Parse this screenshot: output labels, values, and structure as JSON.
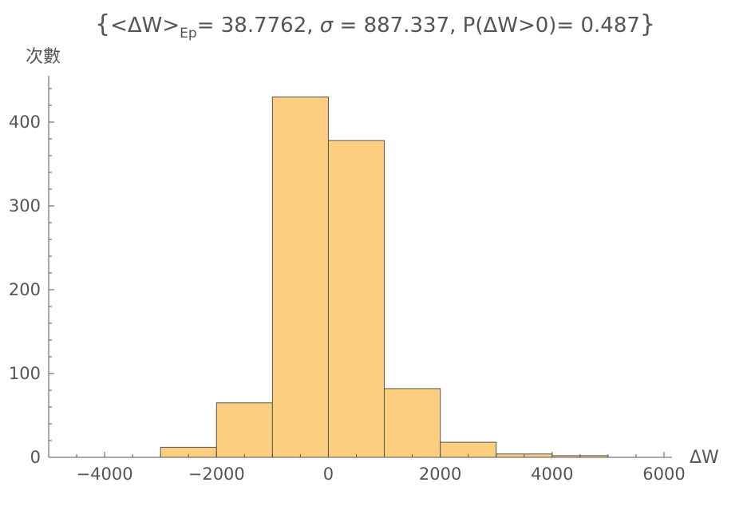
{
  "chart_data": {
    "type": "bar",
    "title": {
      "brace_open": "{",
      "prefix": "<ΔW>",
      "subscript": "Ep",
      "mean_part": "= 38.7762, ",
      "sigma_symbol": "σ",
      "rest": " = 887.337, P(ΔW>0)= 0.487",
      "brace_close": "}"
    },
    "xlabel": "ΔW",
    "ylabel": "次數",
    "xlim": [
      -5000,
      6000
    ],
    "ylim": [
      0,
      450
    ],
    "x_ticks": [
      -4000,
      -2000,
      0,
      2000,
      4000,
      6000
    ],
    "x_tick_labels": [
      "−4000",
      "−2000",
      "0",
      "2000",
      "4000",
      "6000"
    ],
    "y_ticks": [
      0,
      100,
      200,
      300,
      400
    ],
    "y_tick_labels": [
      "0",
      "100",
      "200",
      "300",
      "400"
    ],
    "bin_width": 1000,
    "bins": [
      {
        "start": -3000,
        "end": -2000,
        "count": 12
      },
      {
        "start": -2000,
        "end": -1000,
        "count": 65
      },
      {
        "start": -1000,
        "end": 0,
        "count": 430
      },
      {
        "start": 0,
        "end": 1000,
        "count": 378
      },
      {
        "start": 1000,
        "end": 2000,
        "count": 82
      },
      {
        "start": 2000,
        "end": 3000,
        "count": 18
      },
      {
        "start": 3000,
        "end": 4000,
        "count": 4
      },
      {
        "start": 4000,
        "end": 5000,
        "count": 2
      }
    ],
    "bar_color": "#FCCF80",
    "bar_edge_color": "#555555",
    "axis_color": "#555555",
    "grid": false
  }
}
